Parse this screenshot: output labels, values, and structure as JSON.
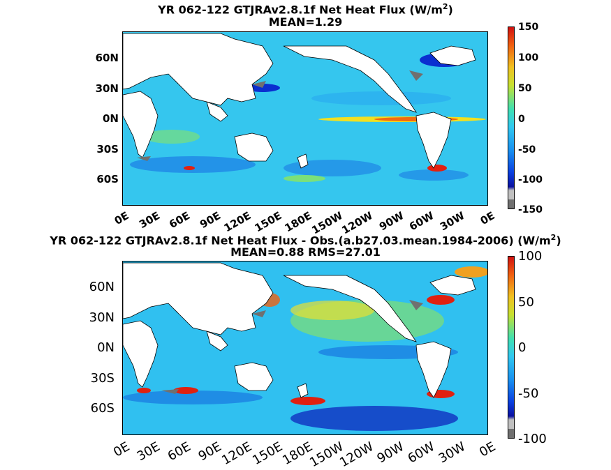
{
  "panel1": {
    "title_line1": "YR 062-122 GTJRAv2.8.1f  Net Heat Flux (W/m",
    "title_sup": "2",
    "title_close": ")",
    "title_line2": "MEAN=1.29",
    "ylabels": [
      "60N",
      "30N",
      "0N",
      "30S",
      "60S"
    ],
    "xlabels": [
      "0E",
      "30E",
      "60E",
      "90E",
      "120E",
      "150E",
      "180E",
      "150W",
      "120W",
      "90W",
      "60W",
      "30W",
      "0E"
    ],
    "colorbar_ticks": [
      "150",
      "100",
      "50",
      "0",
      "-50",
      "-100",
      "-150"
    ]
  },
  "panel2": {
    "title_line1": "YR 062-122 GTJRAv2.8.1f  Net Heat Flux - Obs.(a.b27.03.mean.1984-2006) (W/m",
    "title_sup": "2",
    "title_close": ")",
    "title_line2": "MEAN=0.88 RMS=27.01",
    "ylabels": [
      "60N",
      "30N",
      "0N",
      "30S",
      "60S"
    ],
    "xlabels": [
      "0E",
      "30E",
      "60E",
      "90E",
      "120E",
      "150E",
      "180E",
      "150W",
      "120W",
      "90W",
      "60W",
      "30W",
      "0E"
    ],
    "colorbar_ticks": [
      "100",
      "50",
      "0",
      "-50",
      "-100"
    ]
  },
  "colors": {
    "ocean_base": "#2fc8f0",
    "land": "#ffffff",
    "mask": "#707070"
  }
}
